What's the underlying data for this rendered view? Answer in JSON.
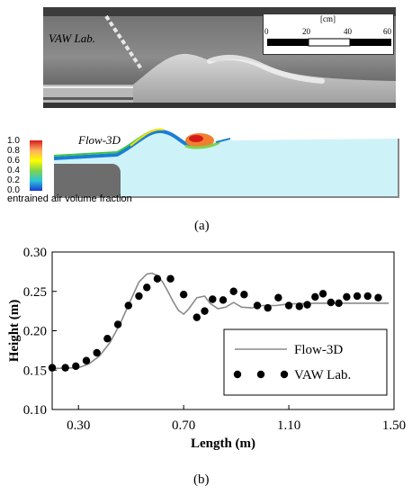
{
  "panel_a": {
    "caption": "(a)",
    "photo_label": "VAW Lab.",
    "scale_bar": {
      "unit": "[cm]",
      "ticks": [
        "0",
        "20",
        "40",
        "60"
      ]
    },
    "sim_label": "Flow-3D",
    "colorbar": {
      "ticks": [
        "1.0",
        "0.8",
        "0.6",
        "0.4",
        "0.2",
        "0.0"
      ],
      "title": "entrained air volume fraction"
    }
  },
  "panel_b": {
    "caption": "(b)"
  },
  "chart_data": {
    "type": "line",
    "xlabel": "Length (m)",
    "ylabel": "Height (m)",
    "xlim": [
      0.2,
      1.5
    ],
    "ylim": [
      0.1,
      0.3
    ],
    "xticks": [
      "0.30",
      "0.70",
      "1.10",
      "1.50"
    ],
    "yticks": [
      "0.10",
      "0.15",
      "0.20",
      "0.25",
      "0.30"
    ],
    "legend_position": "bottom-right",
    "grid": false,
    "series": [
      {
        "name": "Flow-3D",
        "style": "line",
        "color": "#8a8a8a",
        "x": [
          0.2,
          0.3,
          0.34,
          0.38,
          0.42,
          0.46,
          0.5,
          0.53,
          0.56,
          0.58,
          0.6,
          0.62,
          0.64,
          0.66,
          0.68,
          0.7,
          0.72,
          0.75,
          0.78,
          0.8,
          0.83,
          0.86,
          0.89,
          0.92,
          0.96,
          1.0,
          1.05,
          1.1,
          1.2,
          1.3,
          1.4,
          1.48
        ],
        "y": [
          0.152,
          0.153,
          0.158,
          0.168,
          0.185,
          0.21,
          0.24,
          0.262,
          0.272,
          0.273,
          0.27,
          0.262,
          0.25,
          0.237,
          0.226,
          0.221,
          0.228,
          0.242,
          0.244,
          0.235,
          0.228,
          0.23,
          0.236,
          0.23,
          0.229,
          0.232,
          0.232,
          0.234,
          0.235,
          0.235,
          0.235,
          0.235
        ]
      },
      {
        "name": "VAW Lab.",
        "style": "marker",
        "color": "#000000",
        "x": [
          0.2,
          0.25,
          0.29,
          0.33,
          0.37,
          0.41,
          0.45,
          0.49,
          0.53,
          0.56,
          0.6,
          0.65,
          0.7,
          0.75,
          0.78,
          0.81,
          0.85,
          0.89,
          0.93,
          0.98,
          1.02,
          1.06,
          1.1,
          1.14,
          1.17,
          1.2,
          1.23,
          1.26,
          1.29,
          1.32,
          1.36,
          1.4,
          1.44
        ],
        "y": [
          0.153,
          0.153,
          0.155,
          0.162,
          0.172,
          0.19,
          0.208,
          0.232,
          0.244,
          0.255,
          0.266,
          0.266,
          0.246,
          0.217,
          0.225,
          0.24,
          0.239,
          0.25,
          0.246,
          0.232,
          0.229,
          0.242,
          0.232,
          0.231,
          0.233,
          0.243,
          0.247,
          0.236,
          0.235,
          0.243,
          0.244,
          0.244,
          0.242
        ]
      }
    ]
  }
}
